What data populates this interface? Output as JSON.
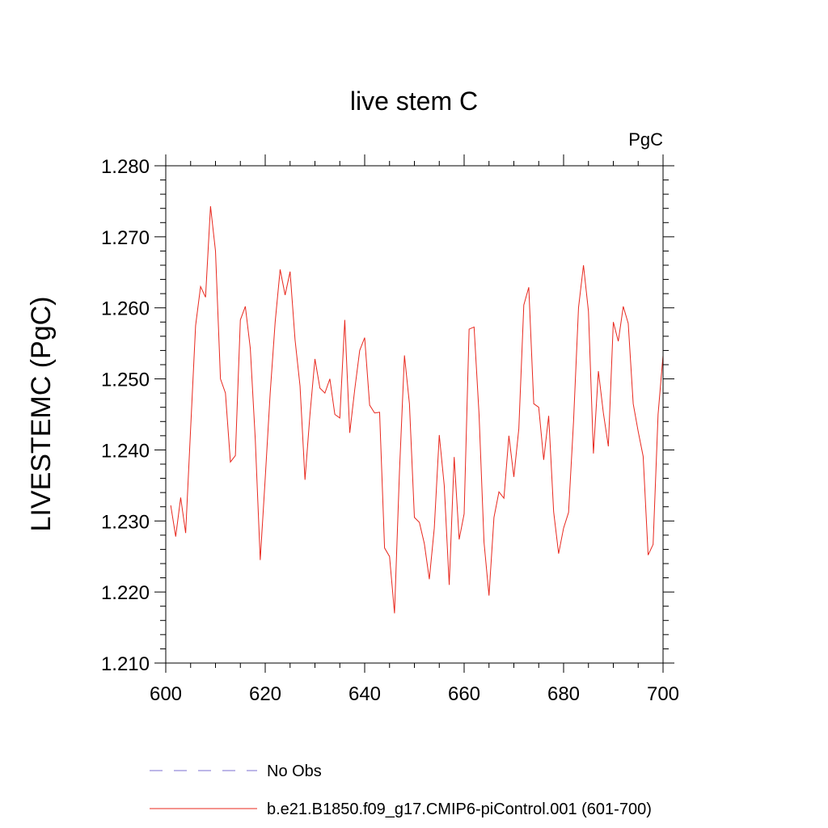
{
  "chart_data": {
    "type": "line",
    "title": "live stem C",
    "units_label": "PgC",
    "ylabel": "LIVESTEMC  (PgC)",
    "xlabel": "",
    "xlim": [
      600,
      700
    ],
    "ylim": [
      1.21,
      1.28
    ],
    "x_ticks": [
      600,
      620,
      640,
      660,
      680,
      700
    ],
    "x_tick_labels": [
      "600",
      "620",
      "640",
      "660",
      "680",
      "700"
    ],
    "y_ticks": [
      1.21,
      1.22,
      1.23,
      1.24,
      1.25,
      1.26,
      1.27,
      1.28
    ],
    "y_tick_labels": [
      "1.210",
      "1.220",
      "1.230",
      "1.240",
      "1.250",
      "1.260",
      "1.270",
      "1.280"
    ],
    "grid": false,
    "legend_placement": "bottom",
    "legend": [
      {
        "label": "No Obs",
        "color": "#7b6fd0",
        "style": "dashed"
      },
      {
        "label": "b.e21.B1850.f09_g17.CMIP6-piControl.001 (601-700)",
        "color": "#e8281e",
        "style": "solid"
      }
    ],
    "series": [
      {
        "name": "b.e21.B1850.f09_g17.CMIP6-piControl.001 (601-700)",
        "color": "#e8281e",
        "x": [
          601,
          602,
          603,
          604,
          605,
          606,
          607,
          608,
          609,
          610,
          611,
          612,
          613,
          614,
          615,
          616,
          617,
          618,
          619,
          620,
          621,
          622,
          623,
          624,
          625,
          626,
          627,
          628,
          629,
          630,
          631,
          632,
          633,
          634,
          635,
          636,
          637,
          638,
          639,
          640,
          641,
          642,
          643,
          644,
          645,
          646,
          647,
          648,
          649,
          650,
          651,
          652,
          653,
          654,
          655,
          656,
          657,
          658,
          659,
          660,
          661,
          662,
          663,
          664,
          665,
          666,
          667,
          668,
          669,
          670,
          671,
          672,
          673,
          674,
          675,
          676,
          677,
          678,
          679,
          680,
          681,
          682,
          683,
          684,
          685,
          686,
          687,
          688,
          689,
          690,
          691,
          692,
          693,
          694,
          695,
          696,
          697,
          698,
          699,
          700
        ],
        "values": [
          1.2322,
          1.2278,
          1.2333,
          1.2283,
          1.243,
          1.2575,
          1.263,
          1.2615,
          1.2743,
          1.268,
          1.25,
          1.248,
          1.2383,
          1.2392,
          1.2583,
          1.2602,
          1.2543,
          1.2415,
          1.2245,
          1.236,
          1.248,
          1.258,
          1.2654,
          1.2618,
          1.2651,
          1.2555,
          1.249,
          1.2358,
          1.245,
          1.2528,
          1.2487,
          1.248,
          1.25,
          1.245,
          1.2445,
          1.2583,
          1.2424,
          1.2485,
          1.254,
          1.2558,
          1.2463,
          1.2452,
          1.2453,
          1.2262,
          1.225,
          1.217,
          1.237,
          1.2533,
          1.2465,
          1.2305,
          1.2298,
          1.2268,
          1.2218,
          1.229,
          1.2421,
          1.235,
          1.221,
          1.239,
          1.2274,
          1.231,
          1.257,
          1.2573,
          1.245,
          1.227,
          1.2195,
          1.2305,
          1.2341,
          1.2332,
          1.242,
          1.2362,
          1.243,
          1.2604,
          1.2629,
          1.2465,
          1.246,
          1.2386,
          1.2448,
          1.2313,
          1.2254,
          1.229,
          1.2312,
          1.244,
          1.26,
          1.266,
          1.2595,
          1.2395,
          1.2511,
          1.2452,
          1.2405,
          1.258,
          1.2553,
          1.2602,
          1.2578,
          1.2465,
          1.2426,
          1.2391,
          1.2252,
          1.2267,
          1.245,
          1.2533
        ]
      }
    ]
  }
}
